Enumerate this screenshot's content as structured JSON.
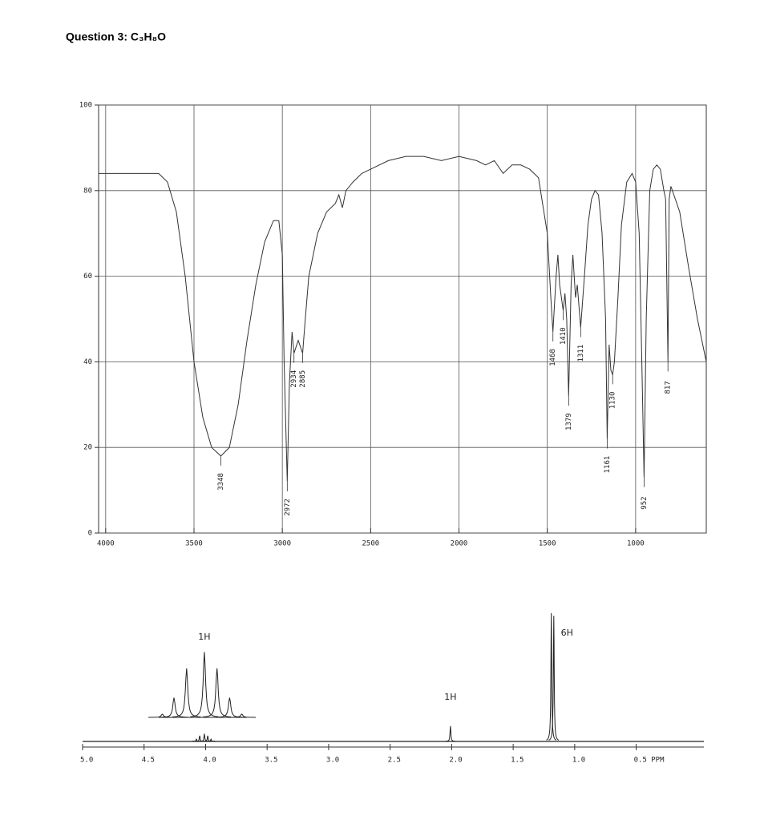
{
  "header": {
    "title": "Question 3: C₃H₈O"
  },
  "chart_data": [
    {
      "type": "line",
      "x": [
        4040,
        3800,
        3700,
        3650,
        3600,
        3550,
        3500,
        3450,
        3400,
        3348,
        3300,
        3250,
        3200,
        3150,
        3100,
        3050,
        3020,
        3000,
        2990,
        2972,
        2960,
        2945,
        2934,
        2910,
        2885,
        2870,
        2850,
        2800,
        2750,
        2700,
        2680,
        2660,
        2640,
        2600,
        2550,
        2500,
        2400,
        2300,
        2200,
        2100,
        2000,
        1900,
        1850,
        1800,
        1750,
        1700,
        1650,
        1600,
        1550,
        1500,
        1480,
        1468,
        1450,
        1440,
        1430,
        1410,
        1400,
        1390,
        1379,
        1365,
        1355,
        1340,
        1330,
        1311,
        1290,
        1270,
        1250,
        1230,
        1210,
        1190,
        1170,
        1161,
        1150,
        1140,
        1130,
        1120,
        1100,
        1080,
        1050,
        1020,
        1000,
        980,
        965,
        952,
        940,
        920,
        900,
        880,
        860,
        840,
        830,
        817,
        810,
        800,
        750,
        700,
        650,
        600
      ],
      "values": [
        84,
        84,
        84,
        82,
        75,
        60,
        40,
        27,
        20,
        18,
        20,
        30,
        45,
        58,
        68,
        73,
        73,
        65,
        40,
        12,
        35,
        47,
        42,
        45,
        42,
        50,
        60,
        70,
        75,
        77,
        79,
        76,
        80,
        82,
        84,
        85,
        87,
        88,
        88,
        87,
        88,
        87,
        86,
        87,
        84,
        86,
        86,
        85,
        83,
        70,
        55,
        47,
        60,
        65,
        58,
        52,
        56,
        50,
        32,
        58,
        65,
        55,
        58,
        48,
        60,
        72,
        78,
        80,
        79,
        70,
        50,
        22,
        44,
        38,
        37,
        40,
        55,
        72,
        82,
        84,
        82,
        70,
        40,
        13,
        50,
        80,
        85,
        86,
        85,
        80,
        78,
        40,
        78,
        81,
        75,
        62,
        50,
        40
      ],
      "xlim": [
        4040,
        600
      ],
      "ylim": [
        0,
        100
      ],
      "xticks": [
        4000,
        3500,
        3000,
        2500,
        2000,
        1500,
        1000
      ],
      "yticks": [
        0,
        20,
        40,
        60,
        80,
        100
      ],
      "grid": true,
      "color": "#333333",
      "peak_labels": [
        3348,
        2972,
        2934,
        2885,
        1468,
        1410,
        1379,
        1311,
        1161,
        1130,
        952,
        817
      ]
    },
    {
      "type": "nmr",
      "x": [
        4.1,
        4.075,
        4.048,
        4.01,
        3.983,
        3.956,
        3.93,
        2.01,
        1.19,
        1.17
      ],
      "values": [
        0.3,
        1.8,
        4.5,
        6,
        4.5,
        1.8,
        0.3,
        12,
        100,
        98
      ],
      "xlim": [
        5,
        -0.05
      ],
      "ylim": [
        0,
        100
      ],
      "xticks": [
        {
          "value": 5,
          "label": "5.0"
        },
        4.5,
        {
          "value": 4,
          "label": "4.0"
        },
        3.5,
        {
          "value": 3,
          "label": "3.0"
        },
        2.5,
        {
          "value": 2,
          "label": "2.0"
        },
        1.5,
        {
          "value": 1,
          "label": "1.0"
        },
        {
          "value": 0.5,
          "label": "0.5 PPM"
        }
      ],
      "color": "#222222",
      "integrals": [
        "1H",
        "1H",
        "6H"
      ]
    }
  ]
}
